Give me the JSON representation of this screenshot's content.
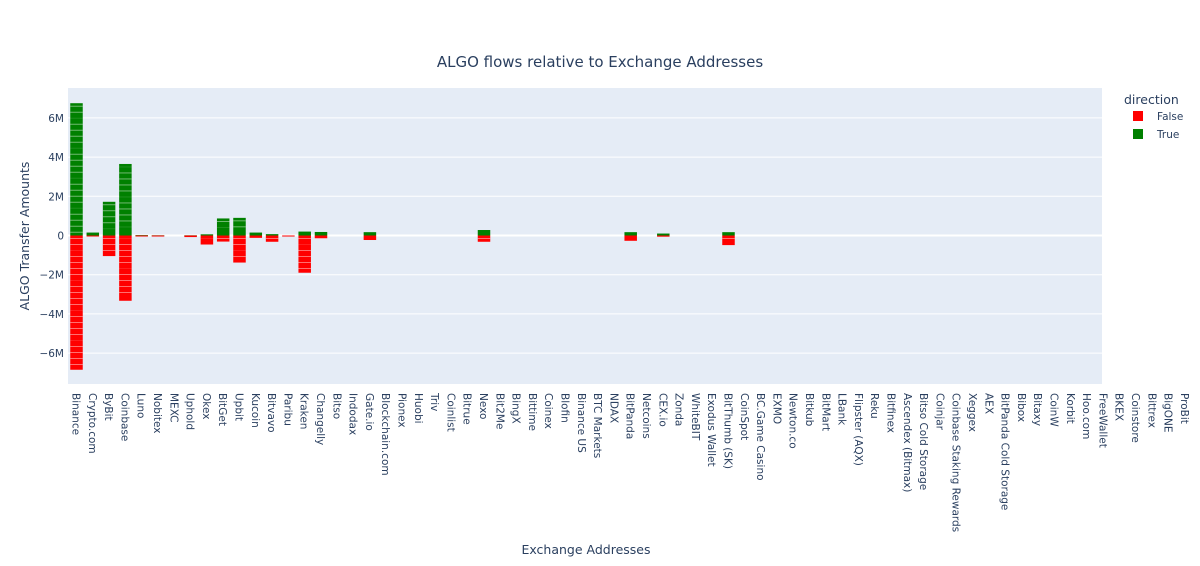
{
  "chart_data": {
    "type": "bar",
    "title": "ALGO flows relative to Exchange Addresses",
    "xlabel": "Exchange Addresses",
    "ylabel": "ALGO Transfer Amounts",
    "ylim": [
      -7000000,
      7500000
    ],
    "y_ticks": [
      {
        "value": 6000000,
        "label": "6M"
      },
      {
        "value": 4000000,
        "label": "4M"
      },
      {
        "value": 2000000,
        "label": "2M"
      },
      {
        "value": 0,
        "label": "0"
      },
      {
        "value": -2000000,
        "label": "−2M"
      },
      {
        "value": -4000000,
        "label": "−4M"
      },
      {
        "value": -6000000,
        "label": "−6M"
      }
    ],
    "legend": {
      "title": "direction",
      "position": "top-right",
      "entries": [
        {
          "name": "False",
          "color": "#ff0000"
        },
        {
          "name": "True",
          "color": "#008000"
        }
      ]
    },
    "categories": [
      "Binance",
      "Crypto.com",
      "ByBit",
      "Coinbase",
      "Luno",
      "Nobitex",
      "MEXC",
      "Uphold",
      "Okex",
      "BitGet",
      "Upbit",
      "Kucoin",
      "Bitvavo",
      "Paribu",
      "Kraken",
      "Changelly",
      "Bitso",
      "Indodax",
      "Gate.io",
      "Blockchain.com",
      "Pionex",
      "Huobi",
      "Triv",
      "Coinlist",
      "Bitrue",
      "Nexo",
      "Bit2Me",
      "BingX",
      "Bittime",
      "Coinex",
      "Blofin",
      "Binance US",
      "BTC Markets",
      "NDAX",
      "BitPanda",
      "Netcoins",
      "CEX.io",
      "Zonda",
      "WhiteBIT",
      "Exodus Wallet",
      "BitThumb (SK)",
      "CoinSpot",
      "BC.Game Casino",
      "EXMO",
      "Newton.co",
      "Bitkub",
      "BitMart",
      "LBank",
      "Flipster (AQX)",
      "Reku",
      "Bitfinex",
      "Ascendex (Bitmax)",
      "Bitso Cold Storage",
      "Coinjar",
      "Coinbase Staking Rewards",
      "Xeggex",
      "AEX",
      "BitPanda Cold Storage",
      "Bibox",
      "Bitaxy",
      "CoinW",
      "Korbit",
      "Hoo.com",
      "FreeWallet",
      "BKEX",
      "Coinstore",
      "Bittrex",
      "BigONE",
      "ProBit"
    ],
    "series": [
      {
        "name": "True",
        "color": "#008000",
        "values": [
          6750000,
          150000,
          1720000,
          3650000,
          20000,
          10000,
          0,
          10000,
          60000,
          870000,
          900000,
          150000,
          70000,
          0,
          200000,
          180000,
          0,
          0,
          170000,
          0,
          0,
          0,
          0,
          0,
          0,
          280000,
          0,
          0,
          0,
          0,
          0,
          0,
          0,
          0,
          170000,
          0,
          100000,
          0,
          0,
          0,
          170000,
          0,
          0,
          0,
          0,
          0,
          0,
          0,
          0,
          0,
          0,
          0,
          0,
          0,
          0,
          0,
          0,
          0,
          0,
          0,
          0,
          0,
          0,
          0,
          0,
          0,
          0,
          0,
          0
        ]
      },
      {
        "name": "False",
        "color": "#ff0000",
        "values": [
          -6850000,
          -20000,
          -1050000,
          -3330000,
          -20000,
          -10000,
          0,
          -80000,
          -460000,
          -310000,
          -1380000,
          -120000,
          -320000,
          -20000,
          -1900000,
          -140000,
          0,
          0,
          -230000,
          0,
          0,
          0,
          0,
          0,
          0,
          -320000,
          0,
          0,
          0,
          0,
          0,
          0,
          0,
          0,
          -270000,
          0,
          -60000,
          0,
          0,
          0,
          -490000,
          0,
          0,
          0,
          0,
          0,
          0,
          0,
          0,
          0,
          0,
          0,
          0,
          0,
          0,
          0,
          0,
          0,
          0,
          0,
          0,
          0,
          0,
          0,
          0,
          0,
          0,
          0,
          0
        ]
      }
    ]
  }
}
